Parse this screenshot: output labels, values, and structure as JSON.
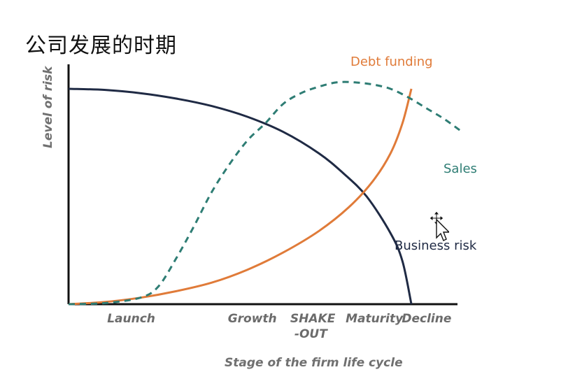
{
  "header": {
    "title": "公司发展的时期"
  },
  "chart_data": {
    "type": "line",
    "xlabel": "Stage of the firm life cycle",
    "ylabel": "Level of risk",
    "categories": [
      "Launch",
      "Growth",
      "SHAKE-OUT",
      "Maturity",
      "Decline"
    ],
    "category_lines": [
      [
        "Launch"
      ],
      [
        "Growth"
      ],
      [
        "SHAKE",
        "-OUT"
      ],
      [
        "Maturity"
      ],
      [
        "Decline"
      ]
    ],
    "category_positions": [
      1,
      3,
      4,
      5,
      6
    ],
    "xlim": [
      0,
      6.5
    ],
    "ylim": [
      0,
      100
    ],
    "grid": false,
    "legend": "inline labels",
    "series": [
      {
        "name": "Business risk",
        "style": "solid",
        "color": "#1f2a44",
        "x": [
          0,
          0.6,
          1.2,
          1.8,
          2.4,
          3.0,
          3.6,
          4.2,
          4.6,
          5.0,
          5.4,
          5.6,
          5.75
        ],
        "y": [
          100,
          99.5,
          98,
          95.5,
          92,
          87,
          80,
          70,
          61,
          50,
          33,
          20,
          0
        ]
      },
      {
        "name": "Debt funding",
        "style": "solid",
        "color": "#e07b39",
        "x": [
          0,
          0.6,
          1.2,
          1.8,
          2.4,
          3.0,
          3.6,
          4.2,
          4.7,
          5.1,
          5.4,
          5.6,
          5.75
        ],
        "y": [
          0,
          1,
          3,
          6,
          10,
          16,
          24,
          34,
          45,
          57,
          70,
          84,
          100
        ]
      },
      {
        "name": "Sales",
        "style": "dashed",
        "color": "#2e7d74",
        "x": [
          0,
          0.6,
          1.2,
          1.5,
          1.8,
          2.1,
          2.4,
          2.7,
          3.0,
          3.3,
          3.6,
          3.9,
          4.2,
          4.5,
          4.8,
          5.1,
          5.4,
          5.7,
          6.0,
          6.3,
          6.6
        ],
        "y": [
          0,
          0.5,
          3,
          8,
          21,
          36,
          52,
          65,
          76,
          84,
          93,
          98,
          101,
          103,
          103,
          102,
          100,
          96,
          91,
          86,
          80
        ]
      }
    ],
    "series_labels": [
      {
        "series": "Debt funding",
        "text": "Debt funding"
      },
      {
        "series": "Sales",
        "text": "Sales"
      },
      {
        "series": "Business risk",
        "text": "Business risk"
      }
    ]
  }
}
